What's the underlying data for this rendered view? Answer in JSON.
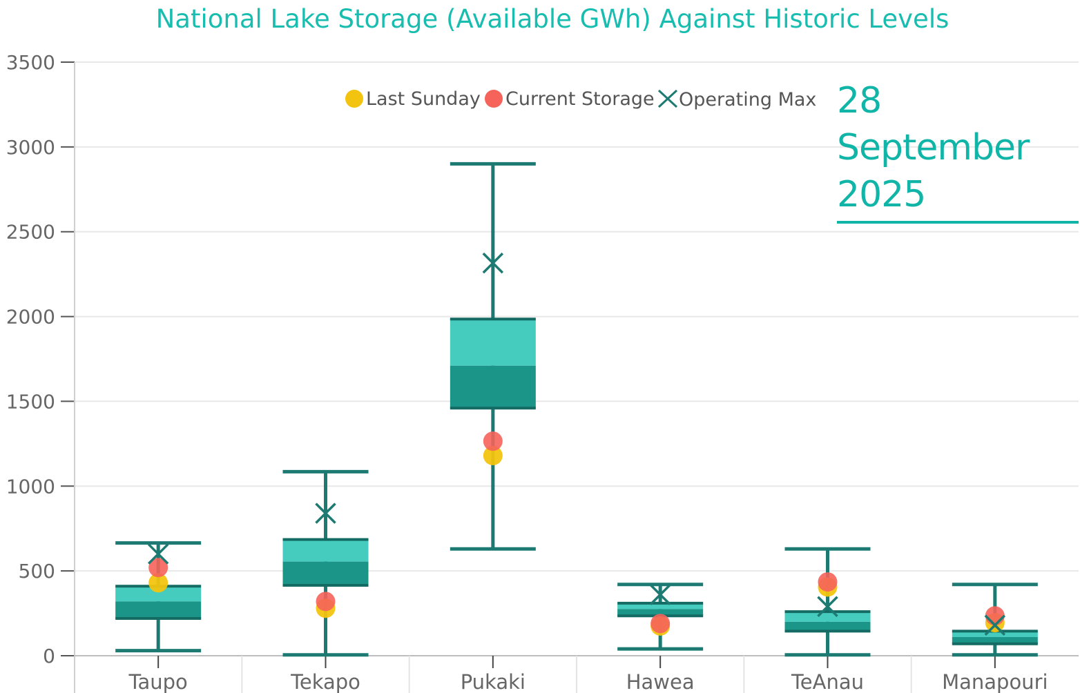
{
  "chart_title": "National Lake Storage (Available GWh) Against Historic Levels",
  "date_label": "28 September 2025",
  "legend": [
    {
      "label": "Last Sunday",
      "marker": "circle",
      "color": "#f2c40f"
    },
    {
      "label": "Current Storage",
      "marker": "circle",
      "color": "#f5635a"
    },
    {
      "label": "Operating Max",
      "marker": "x",
      "color": "#1d7a72"
    }
  ],
  "colors": {
    "box_upper": "#46cbbf",
    "box_lower": "#1c9589",
    "whisker": "#1d7a72",
    "grid": "#e8e8e8",
    "axis_text": "#666666"
  },
  "chart_data": {
    "type": "box",
    "title": "National Lake Storage (Available GWh) Against Historic Levels",
    "xlabel": "",
    "ylabel": "",
    "ylim": [
      0,
      3500
    ],
    "yticks": [
      0,
      500,
      1000,
      1500,
      2000,
      2500,
      3000,
      3500
    ],
    "grid": true,
    "legend_position": "top",
    "categories": [
      "Taupo",
      "Tekapo",
      "Pukaki",
      "Hawea",
      "TeAnau",
      "Manapouri"
    ],
    "boxes": [
      {
        "min": 30,
        "q1": 220,
        "median": 320,
        "q3": 410,
        "max": 665
      },
      {
        "min": 5,
        "q1": 415,
        "median": 555,
        "q3": 685,
        "max": 1085
      },
      {
        "min": 630,
        "q1": 1460,
        "median": 1710,
        "q3": 1985,
        "max": 2900
      },
      {
        "min": 40,
        "q1": 235,
        "median": 275,
        "q3": 310,
        "max": 420
      },
      {
        "min": 5,
        "q1": 145,
        "median": 200,
        "q3": 260,
        "max": 630
      },
      {
        "min": 5,
        "q1": 70,
        "median": 110,
        "q3": 145,
        "max": 420
      }
    ],
    "series": [
      {
        "name": "Last Sunday",
        "values": [
          430,
          280,
          1180,
          175,
          405,
          195
        ]
      },
      {
        "name": "Current Storage",
        "values": [
          520,
          320,
          1265,
          190,
          435,
          235
        ]
      },
      {
        "name": "Operating Max",
        "values": [
          600,
          840,
          2315,
          360,
          290,
          180
        ]
      }
    ]
  }
}
